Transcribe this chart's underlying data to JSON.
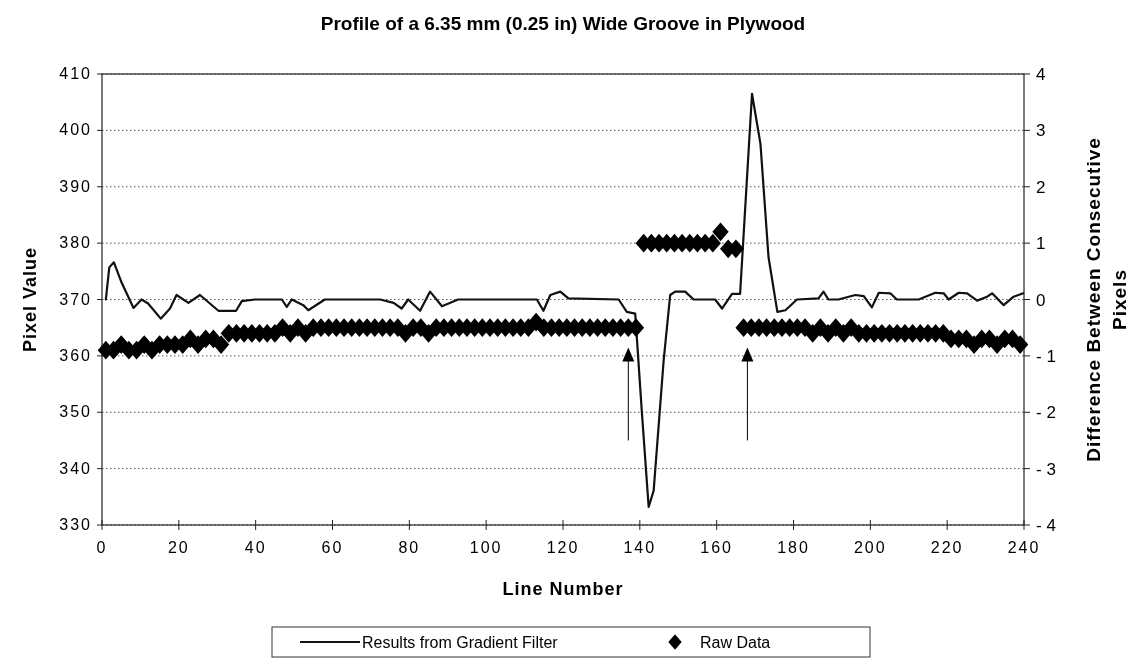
{
  "chart_data": {
    "type": "line",
    "title": "Profile of a 6.35 mm (0.25 in) Wide Groove in Plywood",
    "xlabel": "Line Number",
    "ylabel": "Pixel Value",
    "y2label": "Difference Between Consecutive Pixels",
    "xlim": [
      0,
      240
    ],
    "xticks": [
      0,
      20,
      40,
      60,
      80,
      100,
      120,
      140,
      160,
      180,
      200,
      220,
      240
    ],
    "ylim": [
      330,
      410
    ],
    "yticks": [
      330,
      340,
      350,
      360,
      370,
      380,
      390,
      400,
      410
    ],
    "y2lim": [
      -4,
      4
    ],
    "y2ticks": [
      {
        "value": -4,
        "label": "- 4"
      },
      {
        "value": -3,
        "label": "- 3"
      },
      {
        "value": -2,
        "label": "- 2"
      },
      {
        "value": -1,
        "label": "- 1"
      },
      0,
      1,
      2,
      3,
      4
    ],
    "grid": "y",
    "legend": "bottom",
    "series": [
      {
        "name": "Results from Gradient Filter",
        "axis": "y2",
        "color": "#111111",
        "marker": "none",
        "line_style": "solid",
        "x": [
          1,
          1.9,
          3.1,
          5.1,
          8.2,
          10.3,
          12,
          15.3,
          17.7,
          19.4,
          22.5,
          25.5,
          30.3,
          34.9,
          36.4,
          39.8,
          46.8,
          48.1,
          49.4,
          52.4,
          53.7,
          58,
          72.4,
          75.9,
          78,
          79.7,
          82.8,
          85.4,
          88.5,
          92.7,
          113.2,
          114.9,
          116.7,
          119.3,
          121.4,
          134.5,
          136.6,
          138.8,
          140.5,
          142.3,
          143.6,
          146.2,
          147.9,
          149.2,
          151.8,
          154,
          159.6,
          161.4,
          164,
          166.1,
          169.2,
          171.4,
          173.5,
          175.8,
          177.9,
          180.9,
          186.5,
          187.8,
          189.1,
          191.7,
          196.1,
          198.3,
          200.4,
          202.2,
          205.2,
          206.9,
          212.6,
          216.9,
          219.1,
          220.4,
          223,
          225.2,
          227.8,
          230.4,
          231.7,
          234.7,
          237.3,
          239.8
        ],
        "values": [
          0,
          0.57,
          0.66,
          0.3,
          -0.15,
          0,
          -0.07,
          -0.34,
          -0.16,
          0.08,
          -0.06,
          0.08,
          -0.2,
          -0.2,
          -0.03,
          0,
          0,
          -0.13,
          0,
          -0.1,
          -0.19,
          0,
          0,
          -0.06,
          -0.16,
          0,
          -0.2,
          0.14,
          -0.12,
          0,
          0,
          -0.2,
          0.08,
          0.14,
          0.02,
          0,
          -0.22,
          -0.25,
          -1.97,
          -3.68,
          -3.39,
          -1.08,
          0.08,
          0.14,
          0.14,
          0,
          0,
          -0.16,
          0.1,
          0.1,
          3.65,
          2.76,
          0.75,
          -0.22,
          -0.19,
          0,
          0.02,
          0.14,
          0,
          0,
          0.08,
          0.06,
          -0.14,
          0.12,
          0.11,
          0,
          0,
          0.12,
          0.11,
          0,
          0.12,
          0.11,
          -0.02,
          0.05,
          0.11,
          -0.1,
          0.05,
          0.11
        ]
      },
      {
        "name": "Raw Data",
        "type": "scatter",
        "color": "#000000",
        "marker": "diamond",
        "x": [
          1,
          3,
          5,
          7,
          9,
          11,
          13,
          15,
          17,
          19,
          21,
          23,
          25,
          27,
          29,
          31,
          33,
          35,
          37,
          39,
          41,
          43,
          45,
          47,
          49,
          51,
          53,
          55,
          57,
          59,
          61,
          63,
          65,
          67,
          69,
          71,
          73,
          75,
          77,
          79,
          81,
          83,
          85,
          87,
          89,
          91,
          93,
          95,
          97,
          99,
          101,
          103,
          105,
          107,
          109,
          111,
          113,
          115,
          117,
          119,
          121,
          123,
          125,
          127,
          129,
          131,
          133,
          135,
          137,
          139,
          141,
          143,
          145,
          147,
          149,
          151,
          153,
          155,
          157,
          159,
          161,
          163,
          165,
          167,
          169,
          171,
          173,
          175,
          177,
          179,
          181,
          183,
          185,
          187,
          189,
          191,
          193,
          195,
          197,
          199,
          201,
          203,
          205,
          207,
          209,
          211,
          213,
          215,
          217,
          219,
          221,
          223,
          225,
          227,
          229,
          231,
          233,
          235,
          237,
          239
        ],
        "values": [
          361,
          361,
          362,
          361,
          361,
          362,
          361,
          362,
          362,
          362,
          362,
          363,
          362,
          363,
          363,
          362,
          364,
          364,
          364,
          364,
          364,
          364,
          364,
          365,
          364,
          365,
          364,
          365,
          365,
          365,
          365,
          365,
          365,
          365,
          365,
          365,
          365,
          365,
          365,
          364,
          365,
          365,
          364,
          365,
          365,
          365,
          365,
          365,
          365,
          365,
          365,
          365,
          365,
          365,
          365,
          365,
          366,
          365,
          365,
          365,
          365,
          365,
          365,
          365,
          365,
          365,
          365,
          365,
          365,
          365,
          380,
          380,
          380,
          380,
          380,
          380,
          380,
          380,
          380,
          380,
          382,
          379,
          379,
          365,
          365,
          365,
          365,
          365,
          365,
          365,
          365,
          365,
          364,
          365,
          364,
          365,
          364,
          365,
          364,
          364,
          364,
          364,
          364,
          364,
          364,
          364,
          364,
          364,
          364,
          364,
          363,
          363,
          363,
          362,
          363,
          363,
          362,
          363,
          363,
          362
        ]
      }
    ]
  }
}
